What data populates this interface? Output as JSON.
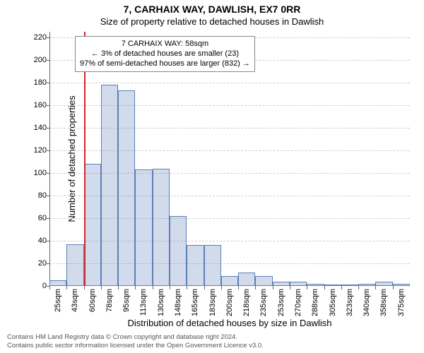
{
  "title_line1": "7, CARHAIX WAY, DAWLISH, EX7 0RR",
  "title_line2": "Size of property relative to detached houses in Dawlish",
  "ylabel": "Number of detached properties",
  "xlabel": "Distribution of detached houses by size in Dawlish",
  "footer_line1": "Contains HM Land Registry data © Crown copyright and database right 2024.",
  "footer_line2": "Contains public sector information licensed under the Open Government Licence v3.0.",
  "chart": {
    "type": "histogram",
    "ymax": 225,
    "ytick_step": 20,
    "ytick_labels": [
      "0",
      "20",
      "40",
      "60",
      "80",
      "100",
      "120",
      "140",
      "160",
      "180",
      "200",
      "220"
    ],
    "grid_color": "#cfcfcf",
    "axis_color": "#666666",
    "bar_fill": "rgba(70,110,180,0.25)",
    "bar_border": "#5b7fb8",
    "marker_color": "#d62728",
    "marker_x_category_index": 2,
    "marker_fraction_across_bin": 0.0,
    "x_labels": [
      "25sqm",
      "43sqm",
      "60sqm",
      "78sqm",
      "95sqm",
      "113sqm",
      "130sqm",
      "148sqm",
      "165sqm",
      "183sqm",
      "200sqm",
      "218sqm",
      "235sqm",
      "253sqm",
      "270sqm",
      "288sqm",
      "305sqm",
      "323sqm",
      "340sqm",
      "358sqm",
      "375sqm"
    ],
    "values": [
      5,
      37,
      108,
      178,
      173,
      103,
      104,
      62,
      36,
      36,
      9,
      12,
      9,
      4,
      4,
      2,
      1,
      1,
      2,
      4,
      2
    ],
    "title_fontsize": 14,
    "subtitle_fontsize": 13,
    "label_fontsize": 13,
    "tick_fontsize": 11,
    "background_color": "#ffffff"
  },
  "infobox": {
    "line1": "7 CARHAIX WAY: 58sqm",
    "line2": "← 3% of detached houses are smaller (23)",
    "line3": "97% of semi-detached houses are larger (832) →"
  }
}
